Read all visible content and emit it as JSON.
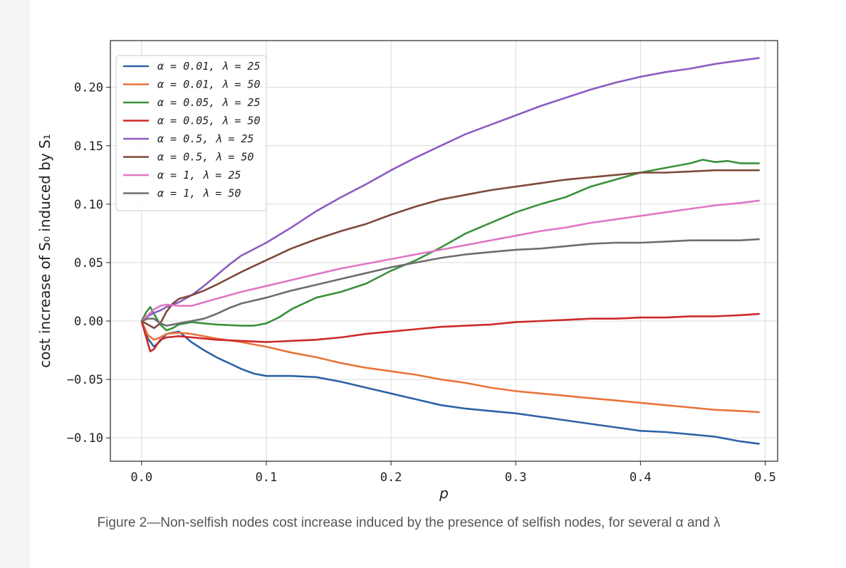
{
  "caption": "Figure 2—Non-selfish nodes cost increase induced by the presence of selfish nodes, for several α and λ",
  "chart_data": {
    "type": "line",
    "title": "",
    "xlabel": "p",
    "ylabel": "cost increase of S₀ induced by S₁",
    "xlim": [
      -0.025,
      0.51
    ],
    "ylim": [
      -0.12,
      0.24
    ],
    "xticks": [
      0.0,
      0.1,
      0.2,
      0.3,
      0.4,
      0.5
    ],
    "xtick_labels": [
      "0.0",
      "0.1",
      "0.2",
      "0.3",
      "0.4",
      "0.5"
    ],
    "yticks": [
      -0.1,
      -0.05,
      0.0,
      0.05,
      0.1,
      0.15,
      0.2
    ],
    "ytick_labels": [
      "−0.10",
      "−0.05",
      "0.00",
      "0.05",
      "0.10",
      "0.15",
      "0.20"
    ],
    "grid": true,
    "legend_position": "top-left",
    "series": [
      {
        "name": "α = 0.01, λ = 25",
        "color": "#2e63a6",
        "x": [
          0,
          0.005,
          0.01,
          0.015,
          0.02,
          0.03,
          0.04,
          0.05,
          0.06,
          0.07,
          0.08,
          0.09,
          0.1,
          0.12,
          0.14,
          0.16,
          0.18,
          0.2,
          0.22,
          0.24,
          0.26,
          0.28,
          0.3,
          0.32,
          0.34,
          0.36,
          0.38,
          0.4,
          0.42,
          0.44,
          0.46,
          0.48,
          0.495
        ],
        "y": [
          0,
          -0.015,
          -0.022,
          -0.017,
          -0.011,
          -0.009,
          -0.018,
          -0.025,
          -0.031,
          -0.036,
          -0.041,
          -0.045,
          -0.047,
          -0.047,
          -0.048,
          -0.052,
          -0.057,
          -0.062,
          -0.067,
          -0.072,
          -0.075,
          -0.077,
          -0.079,
          -0.082,
          -0.085,
          -0.088,
          -0.091,
          -0.094,
          -0.095,
          -0.097,
          -0.099,
          -0.103,
          -0.105
        ]
      },
      {
        "name": "α = 0.01, λ = 50",
        "color": "#e8743b",
        "x": [
          0,
          0.005,
          0.01,
          0.015,
          0.02,
          0.03,
          0.04,
          0.05,
          0.06,
          0.08,
          0.1,
          0.12,
          0.14,
          0.16,
          0.18,
          0.2,
          0.22,
          0.24,
          0.26,
          0.28,
          0.3,
          0.32,
          0.34,
          0.36,
          0.38,
          0.4,
          0.42,
          0.44,
          0.46,
          0.48,
          0.495
        ],
        "y": [
          0,
          -0.012,
          -0.016,
          -0.014,
          -0.011,
          -0.01,
          -0.011,
          -0.013,
          -0.015,
          -0.018,
          -0.022,
          -0.027,
          -0.031,
          -0.036,
          -0.04,
          -0.043,
          -0.046,
          -0.05,
          -0.053,
          -0.057,
          -0.06,
          -0.062,
          -0.064,
          -0.066,
          -0.068,
          -0.07,
          -0.072,
          -0.074,
          -0.076,
          -0.077,
          -0.078
        ]
      },
      {
        "name": "α = 0.05, λ = 25",
        "color": "#3a923a",
        "x": [
          0,
          0.004,
          0.007,
          0.01,
          0.015,
          0.02,
          0.025,
          0.03,
          0.04,
          0.05,
          0.06,
          0.08,
          0.09,
          0.1,
          0.11,
          0.12,
          0.14,
          0.16,
          0.18,
          0.2,
          0.22,
          0.24,
          0.26,
          0.28,
          0.3,
          0.32,
          0.34,
          0.36,
          0.38,
          0.4,
          0.42,
          0.44,
          0.45,
          0.46,
          0.47,
          0.48,
          0.495
        ],
        "y": [
          0,
          0.008,
          0.012,
          0.006,
          -0.003,
          -0.008,
          -0.006,
          -0.003,
          -0.001,
          -0.002,
          -0.003,
          -0.004,
          -0.004,
          -0.002,
          0.003,
          0.01,
          0.02,
          0.025,
          0.032,
          0.043,
          0.052,
          0.063,
          0.075,
          0.084,
          0.093,
          0.1,
          0.106,
          0.115,
          0.121,
          0.127,
          0.131,
          0.135,
          0.138,
          0.136,
          0.137,
          0.135,
          0.135
        ]
      },
      {
        "name": "α = 0.05, λ = 50",
        "color": "#cc2a2a",
        "x": [
          0,
          0.004,
          0.007,
          0.01,
          0.015,
          0.02,
          0.03,
          0.04,
          0.05,
          0.06,
          0.08,
          0.1,
          0.12,
          0.14,
          0.16,
          0.18,
          0.2,
          0.22,
          0.24,
          0.26,
          0.28,
          0.3,
          0.32,
          0.34,
          0.36,
          0.38,
          0.4,
          0.42,
          0.44,
          0.46,
          0.48,
          0.495
        ],
        "y": [
          0,
          -0.015,
          -0.026,
          -0.024,
          -0.016,
          -0.014,
          -0.013,
          -0.014,
          -0.015,
          -0.016,
          -0.017,
          -0.018,
          -0.017,
          -0.016,
          -0.014,
          -0.011,
          -0.009,
          -0.007,
          -0.005,
          -0.004,
          -0.003,
          -0.001,
          0.0,
          0.001,
          0.002,
          0.002,
          0.003,
          0.003,
          0.004,
          0.004,
          0.005,
          0.006
        ]
      },
      {
        "name": "α = 0.5, λ = 25",
        "color": "#8c5cc0",
        "x": [
          0,
          0.005,
          0.01,
          0.015,
          0.02,
          0.03,
          0.04,
          0.05,
          0.06,
          0.07,
          0.08,
          0.1,
          0.12,
          0.14,
          0.16,
          0.18,
          0.2,
          0.22,
          0.24,
          0.26,
          0.28,
          0.3,
          0.32,
          0.34,
          0.36,
          0.38,
          0.4,
          0.42,
          0.44,
          0.46,
          0.48,
          0.495
        ],
        "y": [
          0,
          0.004,
          0.007,
          0.009,
          0.012,
          0.016,
          0.022,
          0.03,
          0.039,
          0.048,
          0.056,
          0.067,
          0.08,
          0.094,
          0.106,
          0.117,
          0.129,
          0.14,
          0.15,
          0.16,
          0.168,
          0.176,
          0.184,
          0.191,
          0.198,
          0.204,
          0.209,
          0.213,
          0.216,
          0.22,
          0.223,
          0.225
        ]
      },
      {
        "name": "α = 0.5, λ = 50",
        "color": "#7d4a3c",
        "x": [
          0,
          0.005,
          0.01,
          0.015,
          0.02,
          0.025,
          0.03,
          0.04,
          0.05,
          0.06,
          0.08,
          0.1,
          0.12,
          0.14,
          0.16,
          0.18,
          0.2,
          0.22,
          0.24,
          0.26,
          0.28,
          0.3,
          0.32,
          0.34,
          0.36,
          0.38,
          0.4,
          0.42,
          0.44,
          0.46,
          0.48,
          0.495
        ],
        "y": [
          0,
          -0.003,
          -0.006,
          -0.002,
          0.008,
          0.015,
          0.019,
          0.022,
          0.026,
          0.031,
          0.042,
          0.052,
          0.062,
          0.07,
          0.077,
          0.083,
          0.091,
          0.098,
          0.104,
          0.108,
          0.112,
          0.115,
          0.118,
          0.121,
          0.123,
          0.125,
          0.127,
          0.127,
          0.128,
          0.129,
          0.129,
          0.129
        ]
      },
      {
        "name": "α = 1, λ = 25",
        "color": "#e077c6",
        "x": [
          0,
          0.005,
          0.01,
          0.015,
          0.02,
          0.03,
          0.04,
          0.05,
          0.06,
          0.08,
          0.1,
          0.12,
          0.14,
          0.16,
          0.18,
          0.2,
          0.22,
          0.24,
          0.26,
          0.28,
          0.3,
          0.32,
          0.34,
          0.36,
          0.38,
          0.4,
          0.42,
          0.44,
          0.46,
          0.48,
          0.495
        ],
        "y": [
          0,
          0.005,
          0.01,
          0.013,
          0.014,
          0.013,
          0.013,
          0.016,
          0.019,
          0.025,
          0.03,
          0.035,
          0.04,
          0.045,
          0.049,
          0.053,
          0.057,
          0.061,
          0.065,
          0.069,
          0.073,
          0.077,
          0.08,
          0.084,
          0.087,
          0.09,
          0.093,
          0.096,
          0.099,
          0.101,
          0.103
        ]
      },
      {
        "name": "α = 1, λ = 50",
        "color": "#6e6e6e",
        "x": [
          0,
          0.005,
          0.01,
          0.015,
          0.02,
          0.03,
          0.04,
          0.05,
          0.06,
          0.07,
          0.08,
          0.1,
          0.12,
          0.14,
          0.16,
          0.18,
          0.2,
          0.22,
          0.24,
          0.26,
          0.28,
          0.3,
          0.32,
          0.34,
          0.36,
          0.38,
          0.4,
          0.42,
          0.44,
          0.46,
          0.48,
          0.495
        ],
        "y": [
          0,
          0.002,
          0.002,
          -0.002,
          -0.004,
          -0.002,
          0.0,
          0.002,
          0.006,
          0.011,
          0.015,
          0.02,
          0.026,
          0.031,
          0.036,
          0.041,
          0.046,
          0.05,
          0.054,
          0.057,
          0.059,
          0.061,
          0.062,
          0.064,
          0.066,
          0.067,
          0.067,
          0.068,
          0.069,
          0.069,
          0.069,
          0.07
        ]
      }
    ]
  }
}
